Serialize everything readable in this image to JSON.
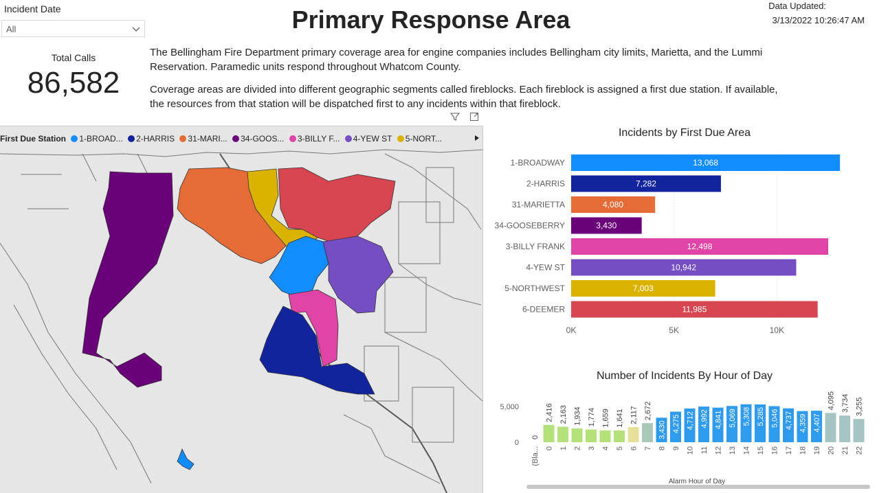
{
  "filter": {
    "label": "Incident Date",
    "value": "All"
  },
  "title": "Primary Response Area",
  "data_updated": {
    "label": "Data Updated:",
    "value": "3/13/2022 10:26:47 AM"
  },
  "kpi": {
    "label": "Total Calls",
    "value": "86,582"
  },
  "description": [
    "The Bellingham Fire Department primary coverage area for engine companies includes Bellingham city limits, Marietta, and the Lummi Reservation.  Paramedic units respond throughout Whatcom County.",
    "Coverage areas are divided into different geographic segments called fireblocks.  Each fireblock is assigned a first due station.  If available, the resources from that station will be dispatched first to any incidents within that fireblock."
  ],
  "map": {
    "legend_title": "First Due Station",
    "legend_items": [
      {
        "label": "1-BROAD...",
        "color": "#118dff"
      },
      {
        "label": "2-HARRIS",
        "color": "#12239e"
      },
      {
        "label": "31-MARI...",
        "color": "#e66c37"
      },
      {
        "label": "34-GOOS...",
        "color": "#6b007b"
      },
      {
        "label": "3-BILLY F...",
        "color": "#e044a7"
      },
      {
        "label": "4-YEW ST",
        "color": "#744ec2"
      },
      {
        "label": "5-NORT...",
        "color": "#d9b300"
      }
    ],
    "icons": [
      "filter-icon",
      "expand-icon",
      "chevron-right-icon"
    ]
  },
  "chart_data": [
    {
      "type": "bar",
      "orientation": "horizontal",
      "title": "Incidents by First Due Area",
      "categories": [
        "1-BROADWAY",
        "2-HARRIS",
        "31-MARIETTA",
        "34-GOOSEBERRY",
        "3-BILLY FRANK",
        "4-YEW ST",
        "5-NORTHWEST",
        "6-DEEMER"
      ],
      "values": [
        13068,
        7282,
        4080,
        3430,
        12498,
        10942,
        7003,
        11985
      ],
      "value_labels": [
        "13,068",
        "7,282",
        "4,080",
        "3,430",
        "12,498",
        "10,942",
        "7,003",
        "11,985"
      ],
      "colors": [
        "#118dff",
        "#12239e",
        "#e66c37",
        "#6b007b",
        "#e044a7",
        "#744ec2",
        "#d9b300",
        "#d64550"
      ],
      "xticks": [
        "0K",
        "5K",
        "10K"
      ],
      "xtick_values": [
        0,
        5000,
        10000
      ],
      "xlim": [
        0,
        14000
      ],
      "grid": true
    },
    {
      "type": "bar",
      "title": "Number of Incidents By Hour of Day",
      "xlabel": "Alarm Hour of Day",
      "categories": [
        "(Bla...",
        "0",
        "1",
        "2",
        "3",
        "4",
        "5",
        "6",
        "7",
        "8",
        "9",
        "10",
        "11",
        "12",
        "13",
        "14",
        "15",
        "16",
        "17",
        "18",
        "19",
        "20",
        "21",
        "22"
      ],
      "values": [
        0,
        2416,
        2163,
        1934,
        1774,
        1659,
        1641,
        2117,
        2672,
        3430,
        4275,
        4712,
        4992,
        4841,
        5069,
        5308,
        5285,
        5046,
        4737,
        4359,
        4407,
        4095,
        3734,
        3255
      ],
      "value_labels": [
        "0",
        "2,416",
        "2,163",
        "1,934",
        "1,774",
        "1,659",
        "1,641",
        "2,117",
        "2,672",
        "3,430",
        "4,275",
        "4,712",
        "4,992",
        "4,841",
        "5,069",
        "5,308",
        "5,285",
        "5,046",
        "4,737",
        "4,359",
        "4,407",
        "4,095",
        "3,734",
        "3,255"
      ],
      "yticks": [
        "5,000",
        "0"
      ],
      "ytick_values": [
        5000,
        0
      ],
      "ylim": [
        0,
        5600
      ]
    }
  ]
}
